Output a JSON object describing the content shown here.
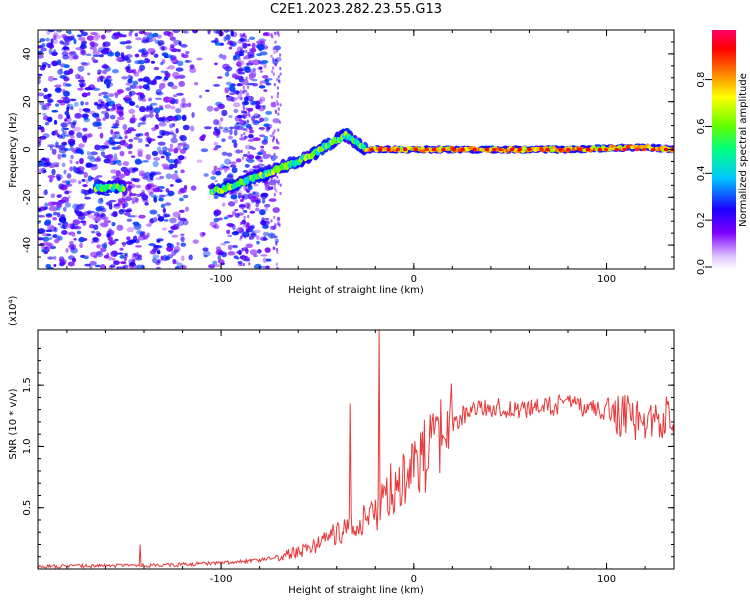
{
  "figure": {
    "title": "C2E1.2023.282.23.55.G13",
    "background": "#ffffff"
  },
  "chart_data": [
    {
      "type": "heatmap",
      "xlabel": "Height of straight line (km)",
      "ylabel": "Frequency (Hz)",
      "xlim": [
        -195,
        135
      ],
      "ylim": [
        -50,
        50
      ],
      "xticks": [
        -100,
        0,
        100
      ],
      "yticks": [
        -40,
        -20,
        0,
        20,
        40
      ],
      "colorbar": {
        "label": "Normalized spectral amplitude",
        "range": [
          0,
          1
        ],
        "ticks": [
          "0.0",
          "0.2",
          "0.4",
          "0.6",
          "0.8"
        ],
        "colors": [
          "#ffffff",
          "#7f00ff",
          "#0000ff",
          "#00c8ff",
          "#00ff80",
          "#66ff00",
          "#ffff00",
          "#ff8000",
          "#ff0000",
          "#ff0066"
        ]
      },
      "ridge": {
        "description_points_x": [
          -160,
          -140,
          -120,
          -100,
          -90,
          -80,
          -70,
          -60,
          -50,
          -45,
          -40,
          -35,
          -30,
          -25,
          -20,
          0,
          40,
          80,
          120,
          135
        ],
        "description_points_y": [
          -16,
          -16,
          -19,
          -17,
          -14,
          -11,
          -8,
          -5,
          -1,
          2,
          4,
          6,
          3,
          0,
          0,
          0,
          0,
          0,
          1,
          0
        ]
      }
    },
    {
      "type": "line",
      "xlabel": "Height of straight line (km)",
      "ylabel": "SNR (10 * v/v)",
      "scale_label": "(x10⁴)",
      "xlim": [
        -195,
        135
      ],
      "ylim": [
        0,
        1.95
      ],
      "xticks": [
        -100,
        0,
        100
      ],
      "yticks": [
        "0.5",
        "1.0",
        "1.5"
      ],
      "ytick_values": [
        0.5,
        1.0,
        1.5
      ],
      "line_color": "#e83a3a",
      "trend": {
        "x": [
          -195,
          -130,
          -100,
          -80,
          -70,
          -60,
          -50,
          -40,
          -30,
          -20,
          -10,
          0,
          10,
          20,
          25,
          30,
          40,
          60,
          80,
          100,
          120,
          135
        ],
        "y": [
          0.02,
          0.03,
          0.05,
          0.07,
          0.1,
          0.14,
          0.2,
          0.3,
          0.35,
          0.45,
          0.7,
          0.85,
          0.95,
          1.15,
          1.25,
          1.3,
          1.32,
          1.3,
          1.35,
          1.28,
          1.2,
          1.25
        ]
      },
      "spikes": [
        {
          "x": -142,
          "y": 0.2
        },
        {
          "x": -33,
          "y": 1.35
        },
        {
          "x": -18,
          "y": 1.95
        }
      ]
    }
  ]
}
